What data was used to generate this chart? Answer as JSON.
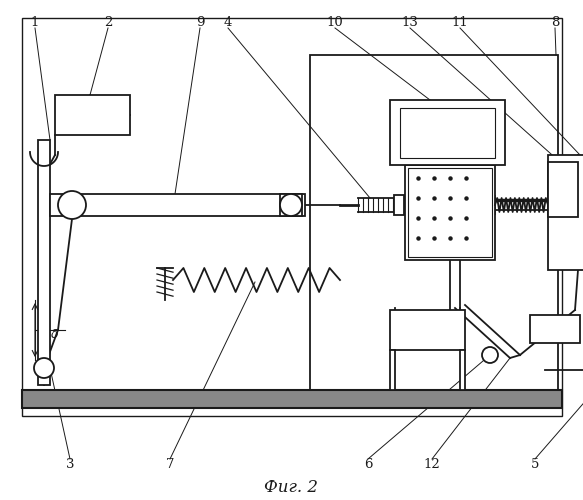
{
  "title": "Фиг. 2",
  "bg_color": "#ffffff",
  "line_color": "#1a1a1a",
  "fig_width": 5.83,
  "fig_height": 5.0
}
